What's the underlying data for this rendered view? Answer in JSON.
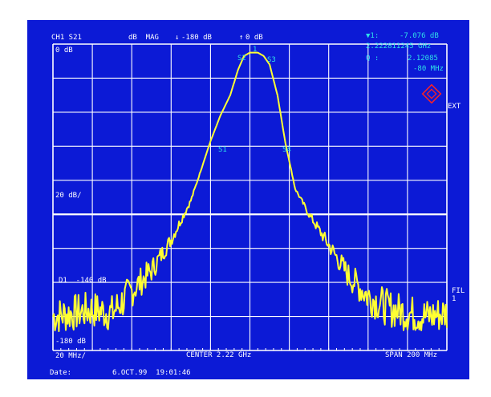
{
  "header": {
    "channel": "CH1 S21",
    "format": "dB  MAG",
    "ref_arrow": "↓",
    "ref_level": "-180 dB",
    "scale_arrow": "↑",
    "scale": "0 dB"
  },
  "marker": {
    "label": "▼1:",
    "value": "-7.076 dB",
    "frequency": "2.222811245 GHz",
    "q_label": "Q :",
    "q_value": "2.12085",
    "bandwidth": "-80 MHz"
  },
  "axis": {
    "top_ref": "0 dB",
    "div": "20 dB/",
    "display_line": "D1  -140 dB",
    "bottom_ref": "-180 dB",
    "freq_div": "20 MHz/",
    "center": "CENTER 2.22 GHz",
    "span": "SPAN 200 MHz"
  },
  "markers_on_trace": [
    "1",
    "S2",
    "S3",
    "S1",
    "S4"
  ],
  "right_labels": {
    "ext": "EXT",
    "fil": "FIL",
    "fil_num": "1"
  },
  "footer": {
    "date_label": "Date:",
    "date_value": "6.OCT.99  19:01:46"
  },
  "colors": {
    "background": "#0c1ad6",
    "grid": "#ffffff",
    "trace": "#ffff33",
    "annotation": "#2fe0e8",
    "ext_icon": "#ff2222"
  },
  "chart_data": {
    "type": "line",
    "title": "",
    "xlabel": "",
    "ylabel": "",
    "xlim": [
      2120,
      2320
    ],
    "ylim": [
      -180,
      0
    ],
    "x_unit": "MHz",
    "y_unit": "dB",
    "series": [
      {
        "x": [
          2120,
          2130,
          2140,
          2150,
          2160,
          2170,
          2180,
          2190,
          2200,
          2205,
          2210,
          2214,
          2217,
          2220,
          2222,
          2224,
          2227,
          2230,
          2234,
          2238,
          2243,
          2250,
          2260,
          2270,
          2280,
          2290,
          2300,
          2310,
          2320
        ],
        "y": [
          -160,
          -158,
          -156,
          -158,
          -145,
          -133,
          -115,
          -92,
          -57,
          -42,
          -30,
          -15,
          -7,
          -5,
          -5,
          -5,
          -7,
          -12,
          -30,
          -58,
          -85,
          -100,
          -118,
          -136,
          -148,
          -155,
          -158,
          -160,
          -158
        ]
      }
    ]
  }
}
